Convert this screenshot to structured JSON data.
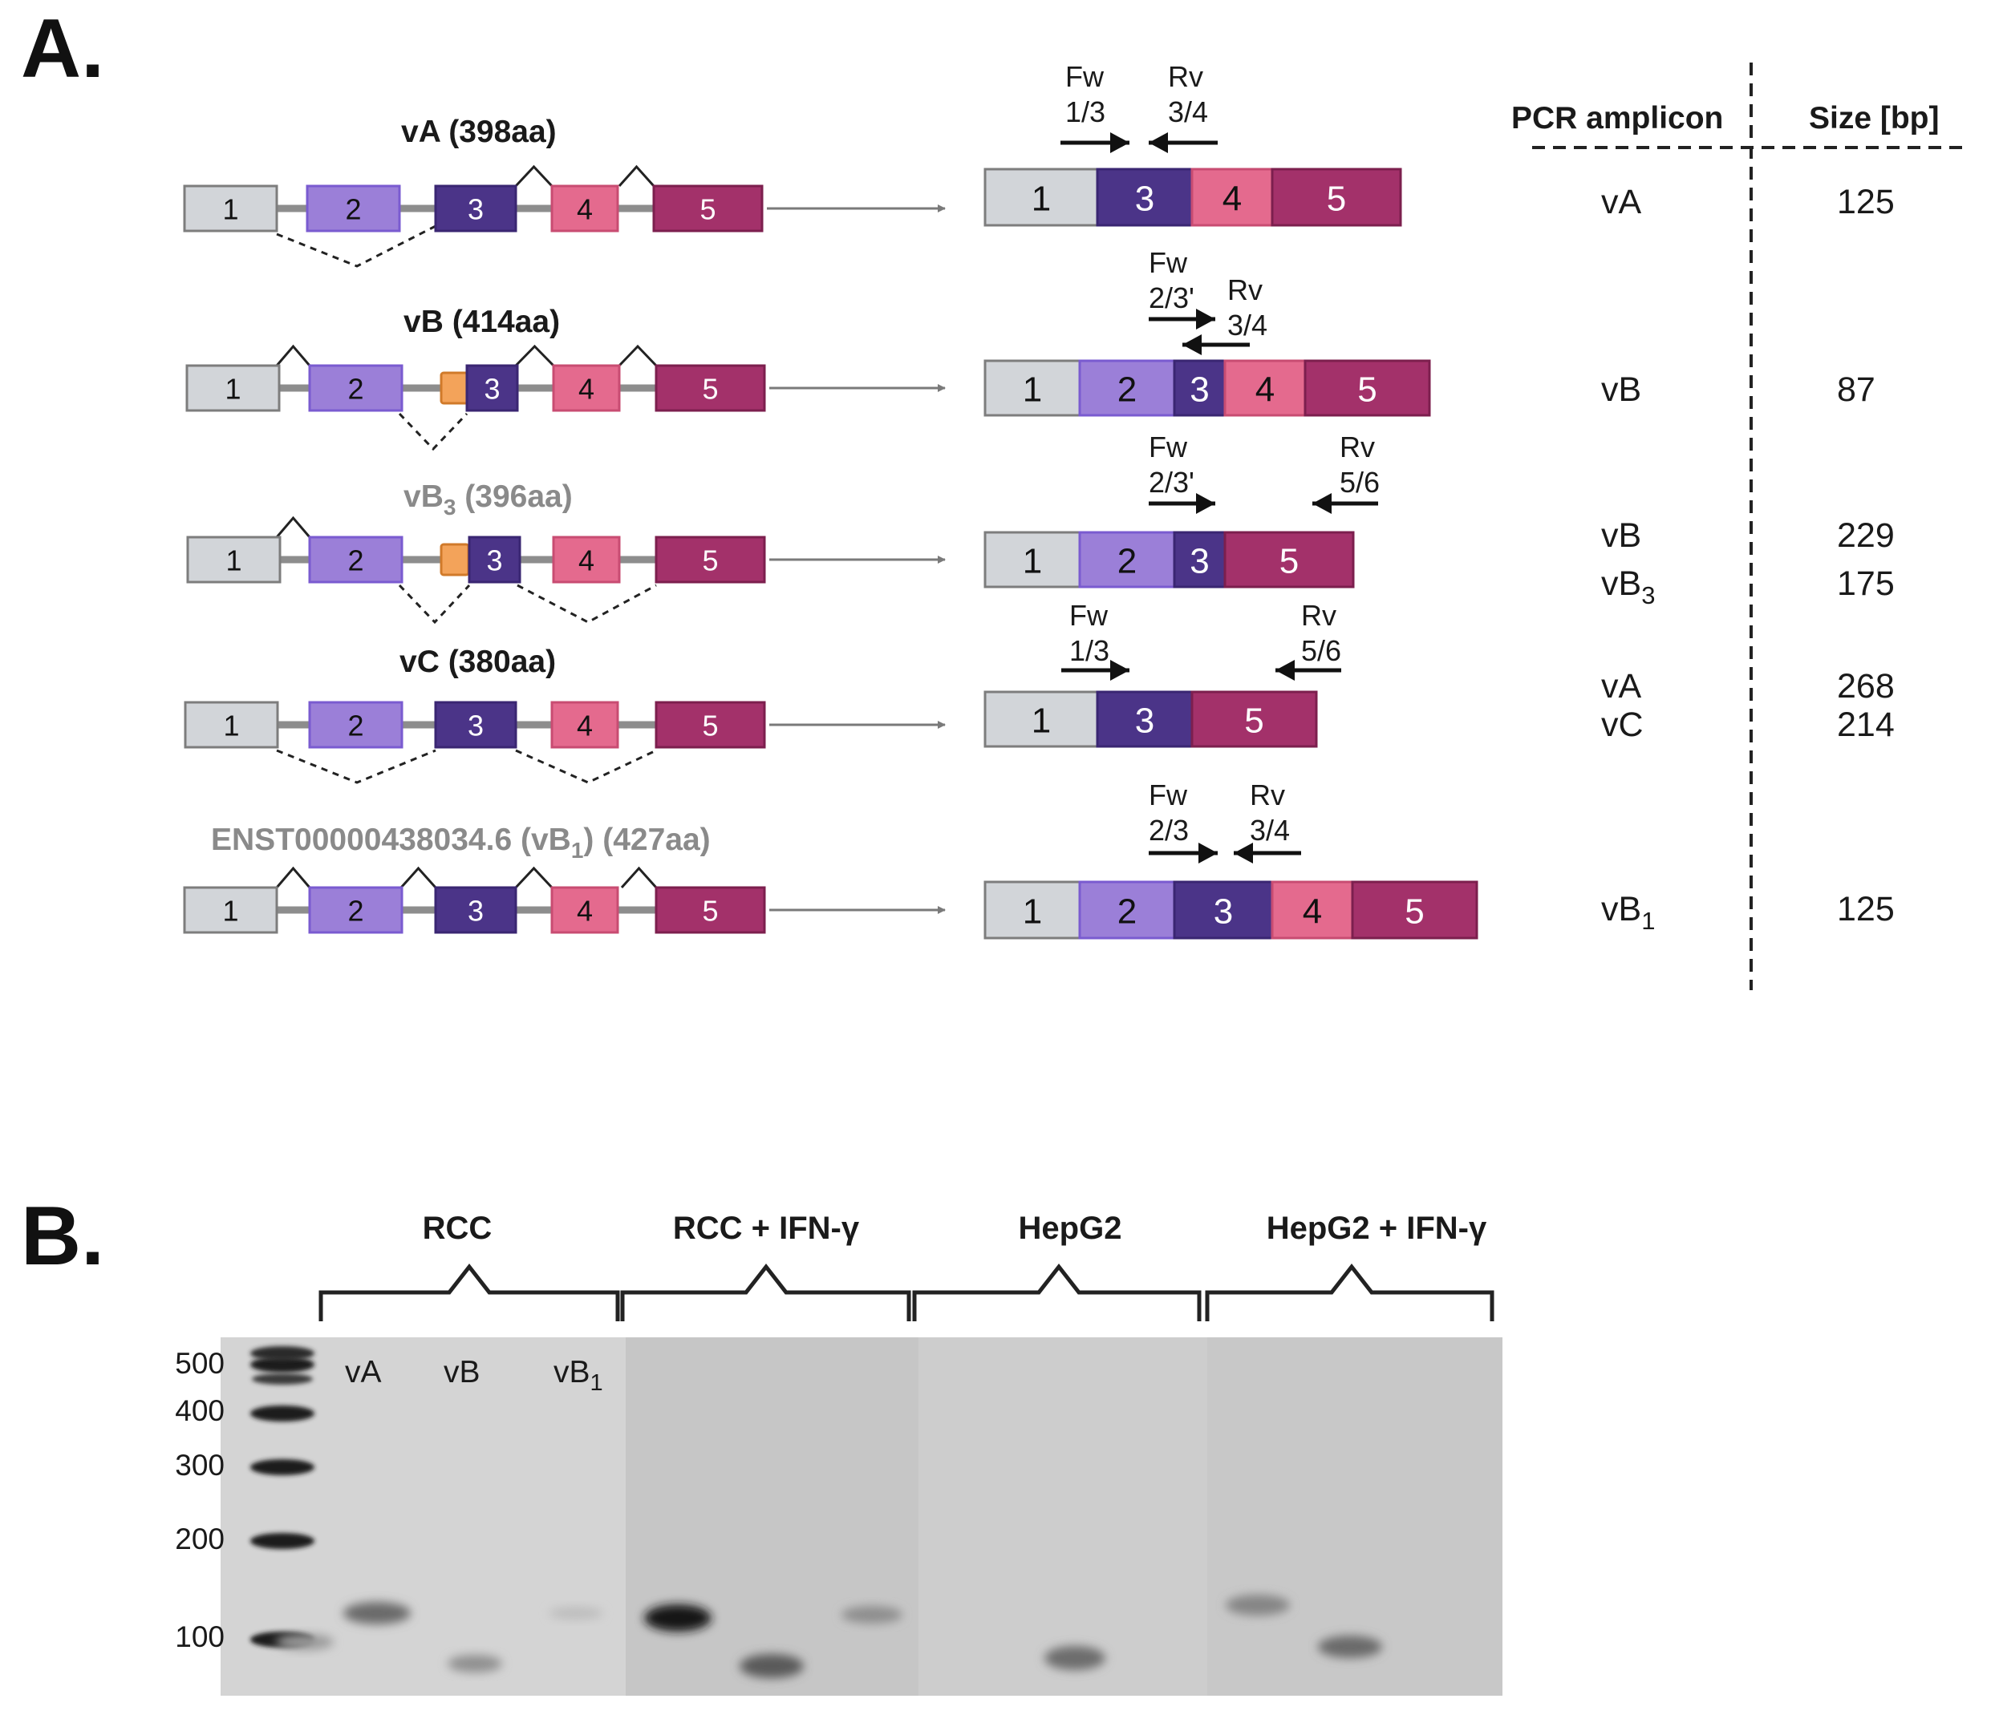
{
  "panel_a": {
    "letter": "A.",
    "isoforms": [
      {
        "title": "vA (398aa)",
        "exon_labels": [
          "1",
          "2",
          "3",
          "4",
          "5"
        ],
        "mrna_labels": [
          "1",
          "3",
          "4",
          "5"
        ],
        "primers": [
          {
            "label1": "Fw",
            "label2": "1/3"
          },
          {
            "label1": "Rv",
            "label2": "3/4"
          }
        ]
      },
      {
        "title": "vB (414aa)",
        "exon_labels": [
          "1",
          "2",
          "3",
          "4",
          "5"
        ],
        "mrna_labels": [
          "1",
          "2",
          "3",
          "4",
          "5"
        ],
        "primers": [
          {
            "label1": "Fw",
            "label2": "2/3'"
          },
          {
            "label1": "Rv",
            "label2": "3/4"
          }
        ]
      },
      {
        "title_main": "vB",
        "title_sub": "3",
        "title_rest": " (396aa)",
        "exon_labels": [
          "1",
          "2",
          "3",
          "4",
          "5"
        ],
        "mrna_labels": [
          "1",
          "2",
          "3",
          "5"
        ],
        "primers": [
          {
            "label1": "Fw",
            "label2": "2/3'"
          },
          {
            "label1": "Rv",
            "label2": "5/6"
          }
        ]
      },
      {
        "title": "vC (380aa)",
        "exon_labels": [
          "1",
          "2",
          "3",
          "4",
          "5"
        ],
        "mrna_labels": [
          "1",
          "3",
          "5"
        ],
        "primers": [
          {
            "label1": "Fw",
            "label2": "1/3"
          },
          {
            "label1": "Rv",
            "label2": "5/6"
          }
        ]
      },
      {
        "title_main": "ENST00000438034.6 (vB",
        "title_sub": "1",
        "title_rest": ") (427aa)",
        "exon_labels": [
          "1",
          "2",
          "3",
          "4",
          "5"
        ],
        "mrna_labels": [
          "1",
          "2",
          "3",
          "4",
          "5"
        ],
        "primers": [
          {
            "label1": "Fw",
            "label2": "2/3"
          },
          {
            "label1": "Rv",
            "label2": "3/4"
          }
        ]
      }
    ],
    "table": {
      "header_amplicon": "PCR amplicon",
      "header_size": "Size [bp]",
      "rows": [
        {
          "amp": "vA",
          "sub": "",
          "size": "125"
        },
        {
          "amp": "vB",
          "sub": "",
          "size": "87"
        },
        {
          "amp": "vB",
          "sub": "",
          "size": "229"
        },
        {
          "amp": "vB",
          "sub": "3",
          "size": "175"
        },
        {
          "amp": "vA",
          "sub": "",
          "size": "268"
        },
        {
          "amp": "vC",
          "sub": "",
          "size": "214"
        },
        {
          "amp": "vB",
          "sub": "1",
          "size": "125"
        }
      ]
    }
  },
  "panel_b": {
    "letter": "B.",
    "groups": [
      "RCC",
      "RCC + IFN-γ",
      "HepG2",
      "HepG2 + IFN-γ"
    ],
    "ladder": [
      "500",
      "400",
      "300",
      "200",
      "100"
    ],
    "lanes": [
      {
        "main": "vA",
        "sub": ""
      },
      {
        "main": "vB",
        "sub": ""
      },
      {
        "main": "vB",
        "sub": "1"
      }
    ]
  },
  "colors": {
    "exon1": "#d2d5d9",
    "exon2": "#9b7fd8",
    "exon3": "#4b3488",
    "exon4": "#e46a8e",
    "exon5": "#a3316a",
    "alt_exon": "#f3a35a",
    "intron": "#8d8d8d",
    "gel_bg": "#c9c9c9"
  }
}
